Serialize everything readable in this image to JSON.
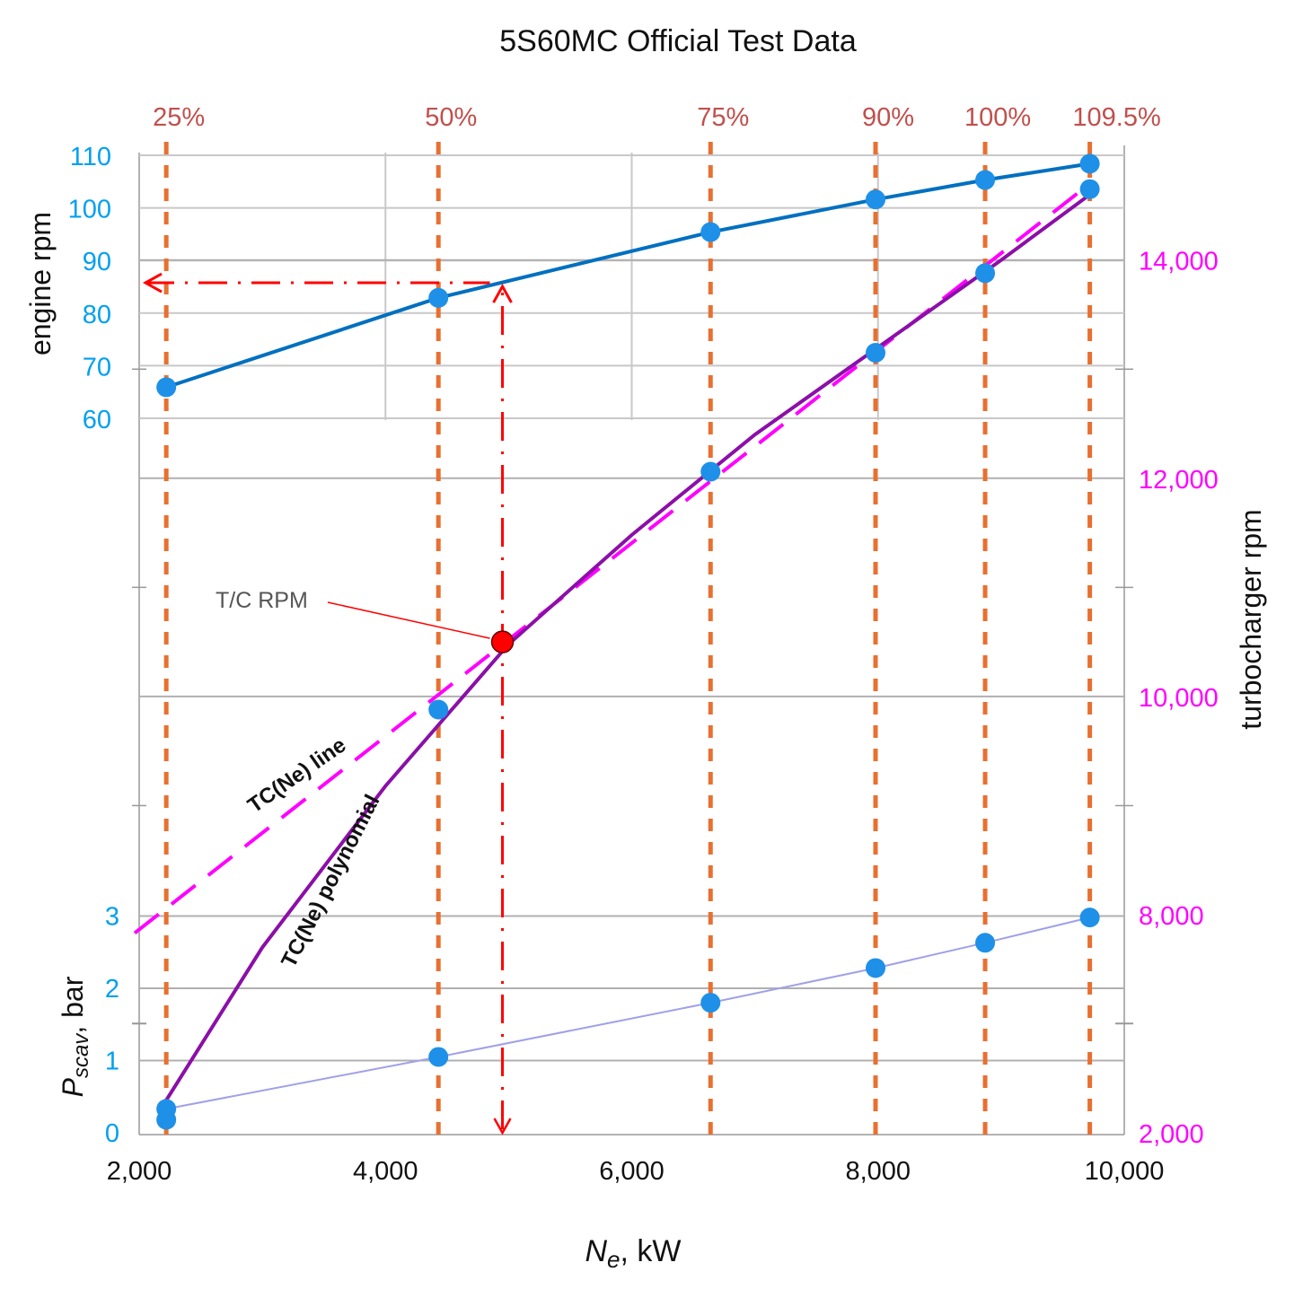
{
  "chart_data": {
    "type": "line",
    "title": "5S60MC Official Test Data",
    "xlabel": {
      "main": "N",
      "sub": "e",
      "rest": ", kW"
    },
    "x_ticks": [
      "2,000",
      "4,000",
      "6,000",
      "8,000",
      "10,000"
    ],
    "xlim": [
      2000,
      10000
    ],
    "load_percent_labels": [
      {
        "label": "25%",
        "x": 2220
      },
      {
        "label": "50%",
        "x": 4430
      },
      {
        "label": "75%",
        "x": 6640
      },
      {
        "label": "90%",
        "x": 7980
      },
      {
        "label": "100%",
        "x": 8870
      },
      {
        "label": "109.5%",
        "x": 9720
      }
    ],
    "engine_rpm": {
      "ylabel": "engine rpm",
      "ylim": [
        60,
        110
      ],
      "ticks": [
        "60",
        "70",
        "80",
        "90",
        "100",
        "110"
      ],
      "points": [
        [
          2220,
          65.9
        ],
        [
          4430,
          82.9
        ],
        [
          6640,
          95.4
        ],
        [
          7980,
          101.6
        ],
        [
          8870,
          105.3
        ],
        [
          9720,
          108.4
        ]
      ]
    },
    "turbocharger_rpm": {
      "ylabel": "turbocharger rpm",
      "ylim": [
        6000,
        14000
      ],
      "right_ticks": [
        "2,000",
        "8,000",
        "10,000",
        "12,000",
        "14,000"
      ],
      "points": [
        [
          4430,
          9880
        ],
        [
          6640,
          12060
        ],
        [
          7980,
          13150
        ],
        [
          8870,
          13880
        ],
        [
          9720,
          14650
        ]
      ],
      "polynomial_label": "TC(Ne) polynomial",
      "line_label": "TC(Ne) line",
      "polynomial": [
        [
          2220,
          6300
        ],
        [
          3000,
          7700
        ],
        [
          4000,
          9180
        ],
        [
          5000,
          10480
        ],
        [
          6000,
          11480
        ],
        [
          7000,
          12400
        ],
        [
          8000,
          13200
        ],
        [
          9000,
          14000
        ],
        [
          9720,
          14600
        ]
      ],
      "line": [
        [
          2000,
          7980
        ],
        [
          9720,
          14700
        ]
      ]
    },
    "operating_point": {
      "label": "T/C RPM",
      "x": 4950,
      "tc_rpm": 10500,
      "engine_rpm": 86.1
    },
    "scavenge_pressure": {
      "ylabel": {
        "main": "P",
        "sub": "scav",
        "rest": ", bar"
      },
      "ylim": [
        0,
        3
      ],
      "ticks": [
        "0",
        "1",
        "2",
        "3"
      ],
      "points": [
        [
          2220,
          0.33
        ],
        [
          4430,
          1.05
        ],
        [
          6640,
          1.8
        ],
        [
          7980,
          2.28
        ],
        [
          8870,
          2.63
        ],
        [
          9720,
          2.98
        ]
      ],
      "extra_points": [
        [
          2220,
          0.18
        ]
      ]
    },
    "colors": {
      "engine": "#0070c0",
      "marker": "#1e90e8",
      "tick_blue": "#00a0f0",
      "magenta": "#ff00ff",
      "purple": "#8b0fa8",
      "pscav": "#a0a0e8",
      "orange": "#e87030",
      "percent": "#c0504d",
      "red": "#ff0000",
      "grid": "#c8c8c8"
    }
  }
}
